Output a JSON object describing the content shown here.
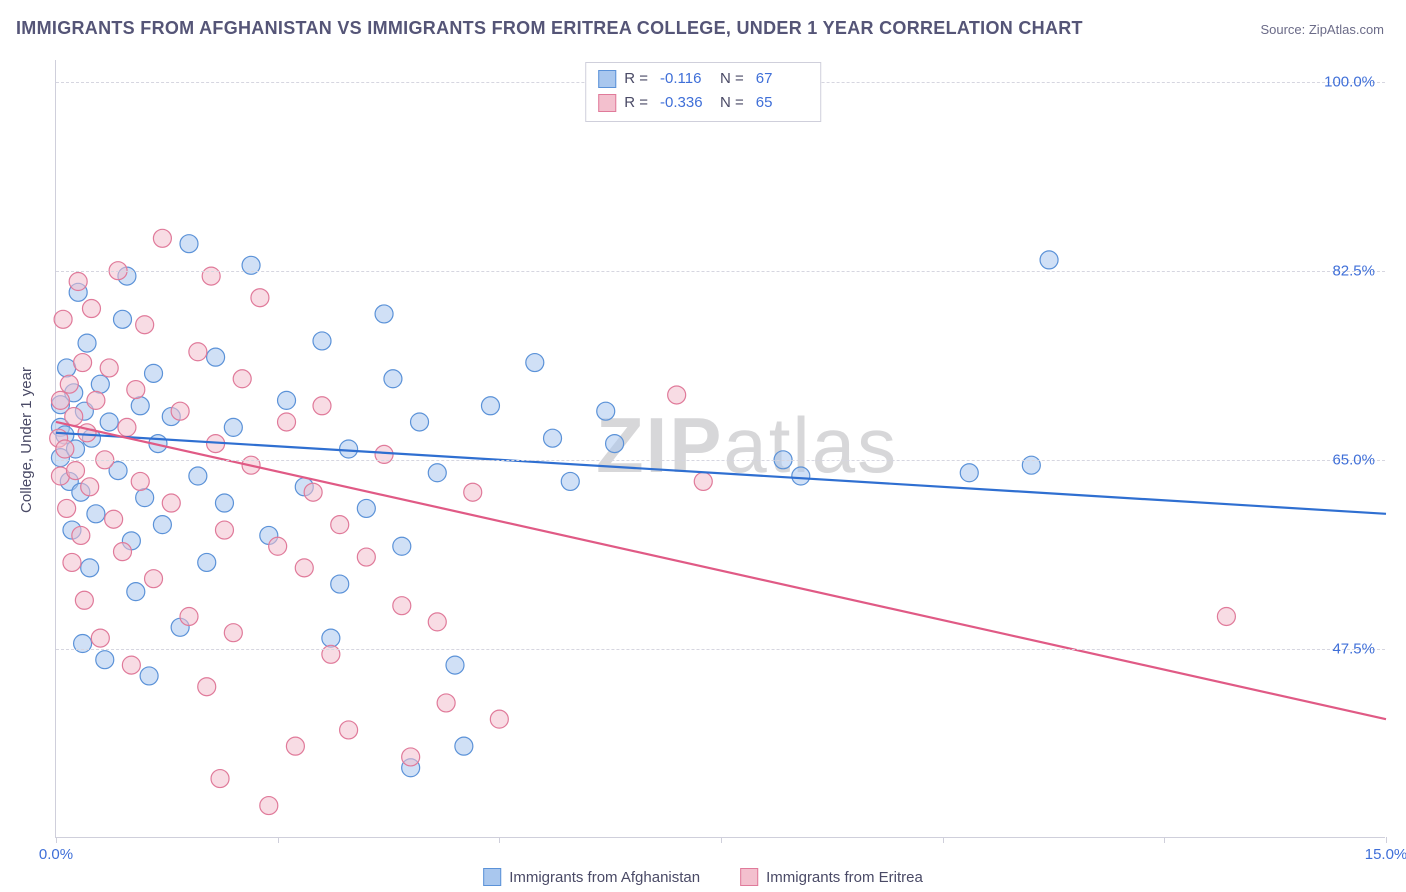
{
  "title": "IMMIGRANTS FROM AFGHANISTAN VS IMMIGRANTS FROM ERITREA COLLEGE, UNDER 1 YEAR CORRELATION CHART",
  "source": "Source: ZipAtlas.com",
  "ylabel": "College, Under 1 year",
  "watermark_zip": "ZIP",
  "watermark_atlas": "atlas",
  "chart": {
    "type": "scatter",
    "xlim": [
      0,
      15
    ],
    "ylim": [
      30,
      102
    ],
    "xticks": [
      0,
      2.5,
      5,
      7.5,
      10,
      12.5,
      15
    ],
    "xticklabels_show": [
      0,
      15
    ],
    "xticklabels": {
      "0": "0.0%",
      "15": "15.0%"
    },
    "yticks": [
      47.5,
      65.0,
      82.5,
      100.0
    ],
    "yticklabels": [
      "47.5%",
      "65.0%",
      "82.5%",
      "100.0%"
    ],
    "background_color": "#ffffff",
    "grid_color": "#d6d6e0",
    "axis_color": "#cfcfdb",
    "tick_label_color": "#3f6fd8",
    "marker_radius": 9,
    "marker_opacity": 0.55,
    "line_width": 2.2,
    "series": [
      {
        "name": "Immigrants from Afghanistan",
        "color_fill": "#a9c7ee",
        "color_stroke": "#5b92d8",
        "line_color": "#2f6fd1",
        "R": "-0.116",
        "N": "67",
        "trend": {
          "x0": 0,
          "y0": 67.5,
          "x1": 15,
          "y1": 60.0
        },
        "points": [
          [
            0.05,
            65.2
          ],
          [
            0.05,
            68.0
          ],
          [
            0.05,
            70.1
          ],
          [
            0.1,
            67.3
          ],
          [
            0.12,
            73.5
          ],
          [
            0.15,
            63.0
          ],
          [
            0.18,
            58.5
          ],
          [
            0.2,
            71.2
          ],
          [
            0.22,
            66.0
          ],
          [
            0.25,
            80.5
          ],
          [
            0.28,
            62.0
          ],
          [
            0.3,
            48.0
          ],
          [
            0.32,
            69.5
          ],
          [
            0.35,
            75.8
          ],
          [
            0.38,
            55.0
          ],
          [
            0.4,
            67.0
          ],
          [
            0.45,
            60.0
          ],
          [
            0.5,
            72.0
          ],
          [
            0.55,
            46.5
          ],
          [
            0.6,
            68.5
          ],
          [
            0.7,
            64.0
          ],
          [
            0.75,
            78.0
          ],
          [
            0.8,
            82.0
          ],
          [
            0.85,
            57.5
          ],
          [
            0.9,
            52.8
          ],
          [
            0.95,
            70.0
          ],
          [
            1.0,
            61.5
          ],
          [
            1.05,
            45.0
          ],
          [
            1.1,
            73.0
          ],
          [
            1.15,
            66.5
          ],
          [
            1.2,
            59.0
          ],
          [
            1.3,
            69.0
          ],
          [
            1.4,
            49.5
          ],
          [
            1.5,
            85.0
          ],
          [
            1.6,
            63.5
          ],
          [
            1.7,
            55.5
          ],
          [
            1.8,
            74.5
          ],
          [
            1.9,
            61.0
          ],
          [
            2.0,
            68.0
          ],
          [
            2.2,
            83.0
          ],
          [
            2.4,
            58.0
          ],
          [
            2.6,
            70.5
          ],
          [
            2.8,
            62.5
          ],
          [
            3.0,
            76.0
          ],
          [
            3.1,
            48.5
          ],
          [
            3.2,
            53.5
          ],
          [
            3.3,
            66.0
          ],
          [
            3.5,
            60.5
          ],
          [
            3.7,
            78.5
          ],
          [
            3.8,
            72.5
          ],
          [
            3.9,
            57.0
          ],
          [
            4.0,
            36.5
          ],
          [
            4.1,
            68.5
          ],
          [
            4.3,
            63.8
          ],
          [
            4.5,
            46.0
          ],
          [
            4.6,
            38.5
          ],
          [
            4.9,
            70.0
          ],
          [
            5.4,
            74.0
          ],
          [
            5.6,
            67.0
          ],
          [
            5.8,
            63.0
          ],
          [
            6.2,
            69.5
          ],
          [
            6.3,
            66.5
          ],
          [
            8.2,
            65.0
          ],
          [
            8.4,
            63.5
          ],
          [
            10.3,
            63.8
          ],
          [
            11.0,
            64.5
          ],
          [
            11.2,
            83.5
          ]
        ]
      },
      {
        "name": "Immigrants from Eritrea",
        "color_fill": "#f3c0ce",
        "color_stroke": "#e07a9a",
        "line_color": "#e05a85",
        "R": "-0.336",
        "N": "65",
        "trend": {
          "x0": 0,
          "y0": 68.5,
          "x1": 15,
          "y1": 41.0
        },
        "points": [
          [
            0.03,
            67.0
          ],
          [
            0.05,
            70.5
          ],
          [
            0.05,
            63.5
          ],
          [
            0.08,
            78.0
          ],
          [
            0.1,
            66.0
          ],
          [
            0.12,
            60.5
          ],
          [
            0.15,
            72.0
          ],
          [
            0.18,
            55.5
          ],
          [
            0.2,
            69.0
          ],
          [
            0.22,
            64.0
          ],
          [
            0.25,
            81.5
          ],
          [
            0.28,
            58.0
          ],
          [
            0.3,
            74.0
          ],
          [
            0.32,
            52.0
          ],
          [
            0.35,
            67.5
          ],
          [
            0.38,
            62.5
          ],
          [
            0.4,
            79.0
          ],
          [
            0.45,
            70.5
          ],
          [
            0.5,
            48.5
          ],
          [
            0.55,
            65.0
          ],
          [
            0.6,
            73.5
          ],
          [
            0.65,
            59.5
          ],
          [
            0.7,
            82.5
          ],
          [
            0.75,
            56.5
          ],
          [
            0.8,
            68.0
          ],
          [
            0.85,
            46.0
          ],
          [
            0.9,
            71.5
          ],
          [
            0.95,
            63.0
          ],
          [
            1.0,
            77.5
          ],
          [
            1.1,
            54.0
          ],
          [
            1.2,
            85.5
          ],
          [
            1.3,
            61.0
          ],
          [
            1.4,
            69.5
          ],
          [
            1.5,
            50.5
          ],
          [
            1.6,
            75.0
          ],
          [
            1.7,
            44.0
          ],
          [
            1.75,
            82.0
          ],
          [
            1.8,
            66.5
          ],
          [
            1.85,
            35.5
          ],
          [
            1.9,
            58.5
          ],
          [
            2.0,
            49.0
          ],
          [
            2.1,
            72.5
          ],
          [
            2.2,
            64.5
          ],
          [
            2.3,
            80.0
          ],
          [
            2.4,
            33.0
          ],
          [
            2.5,
            57.0
          ],
          [
            2.6,
            68.5
          ],
          [
            2.7,
            38.5
          ],
          [
            2.8,
            55.0
          ],
          [
            2.9,
            62.0
          ],
          [
            3.0,
            70.0
          ],
          [
            3.1,
            47.0
          ],
          [
            3.2,
            59.0
          ],
          [
            3.3,
            40.0
          ],
          [
            3.5,
            56.0
          ],
          [
            3.7,
            65.5
          ],
          [
            3.9,
            51.5
          ],
          [
            4.0,
            37.5
          ],
          [
            4.3,
            50.0
          ],
          [
            4.4,
            42.5
          ],
          [
            4.7,
            62.0
          ],
          [
            5.0,
            41.0
          ],
          [
            7.0,
            71.0
          ],
          [
            7.3,
            63.0
          ],
          [
            13.2,
            50.5
          ]
        ]
      }
    ]
  },
  "legend_bottom": [
    {
      "label": "Immigrants from Afghanistan",
      "fill": "#a9c7ee",
      "stroke": "#5b92d8"
    },
    {
      "label": "Immigrants from Eritrea",
      "fill": "#f3c0ce",
      "stroke": "#e07a9a"
    }
  ]
}
